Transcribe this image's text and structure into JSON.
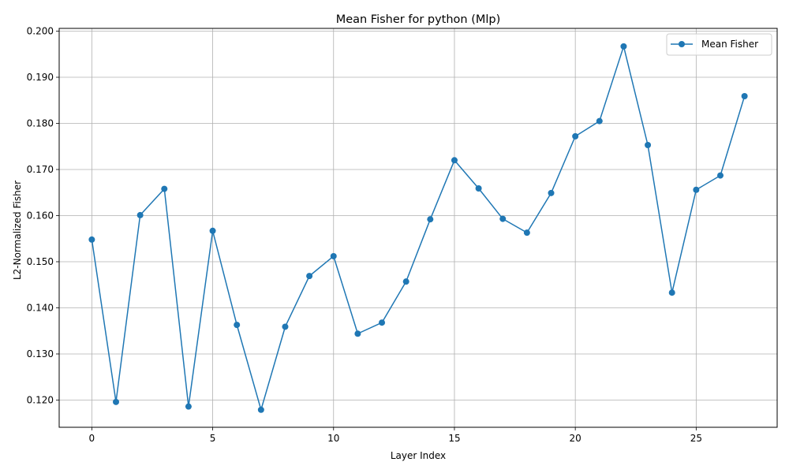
{
  "chart_data": {
    "type": "line",
    "title": "Mean Fisher for python (Mlp)",
    "xlabel": "Layer Index",
    "ylabel": "L2-Normalized Fisher",
    "xlim": [
      -1.35,
      28.35
    ],
    "ylim": [
      0.1141,
      0.2006
    ],
    "xticks": [
      0,
      5,
      10,
      15,
      20,
      25
    ],
    "xtick_labels": [
      "0",
      "5",
      "10",
      "15",
      "20",
      "25"
    ],
    "yticks": [
      0.12,
      0.13,
      0.14,
      0.15,
      0.16,
      0.17,
      0.18,
      0.19,
      0.2
    ],
    "ytick_labels": [
      "0.120",
      "0.130",
      "0.140",
      "0.150",
      "0.160",
      "0.170",
      "0.180",
      "0.190",
      "0.200"
    ],
    "grid": true,
    "legend_position": "top-right",
    "series": [
      {
        "name": "Mean Fisher",
        "color": "#1f77b4",
        "marker": "circle",
        "x": [
          0,
          1,
          2,
          3,
          4,
          5,
          6,
          7,
          8,
          9,
          10,
          11,
          12,
          13,
          14,
          15,
          16,
          17,
          18,
          19,
          20,
          21,
          22,
          23,
          24,
          25,
          26,
          27
        ],
        "y": [
          0.1548,
          0.1196,
          0.1601,
          0.1658,
          0.1186,
          0.1567,
          0.1363,
          0.1179,
          0.1359,
          0.1469,
          0.1512,
          0.1344,
          0.1368,
          0.1457,
          0.1592,
          0.172,
          0.1659,
          0.1593,
          0.1563,
          0.1649,
          0.1772,
          0.1805,
          0.1967,
          0.1753,
          0.1433,
          0.1656,
          0.1687,
          0.1859
        ]
      }
    ]
  }
}
